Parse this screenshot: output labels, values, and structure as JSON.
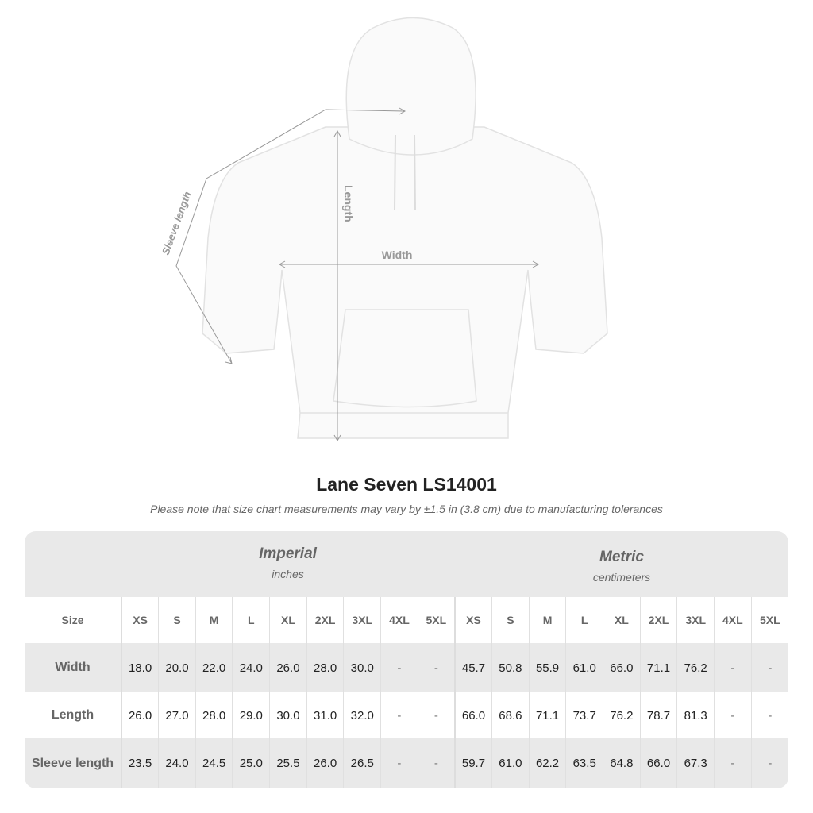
{
  "diagram": {
    "length_label": "Length",
    "width_label": "Width",
    "sleeve_label": "Sleeve length"
  },
  "title": "Lane Seven LS14001",
  "subtitle": "Please note that size chart measurements may vary by ±1.5 in (3.8 cm) due to manufacturing tolerances",
  "imperial": {
    "name": "Imperial",
    "unit": "inches"
  },
  "metric": {
    "name": "Metric",
    "unit": "centimeters"
  },
  "table": {
    "size_label": "Size",
    "sizes": [
      "XS",
      "S",
      "M",
      "L",
      "XL",
      "2XL",
      "3XL",
      "4XL",
      "5XL"
    ],
    "rows": [
      {
        "label": "Width",
        "imperial": [
          "18.0",
          "20.0",
          "22.0",
          "24.0",
          "26.0",
          "28.0",
          "30.0",
          "-",
          "-"
        ],
        "metric": [
          "45.7",
          "50.8",
          "55.9",
          "61.0",
          "66.0",
          "71.1",
          "76.2",
          "-",
          "-"
        ]
      },
      {
        "label": "Length",
        "imperial": [
          "26.0",
          "27.0",
          "28.0",
          "29.0",
          "30.0",
          "31.0",
          "32.0",
          "-",
          "-"
        ],
        "metric": [
          "66.0",
          "68.6",
          "71.1",
          "73.7",
          "76.2",
          "78.7",
          "81.3",
          "-",
          "-"
        ]
      },
      {
        "label": "Sleeve length",
        "imperial": [
          "23.5",
          "24.0",
          "24.5",
          "25.0",
          "25.5",
          "26.0",
          "26.5",
          "-",
          "-"
        ],
        "metric": [
          "59.7",
          "61.0",
          "62.2",
          "63.5",
          "64.8",
          "66.0",
          "67.3",
          "-",
          "-"
        ]
      }
    ]
  },
  "colors": {
    "band": "#e9e9e9",
    "label": "#666666",
    "arrow": "#999999"
  }
}
